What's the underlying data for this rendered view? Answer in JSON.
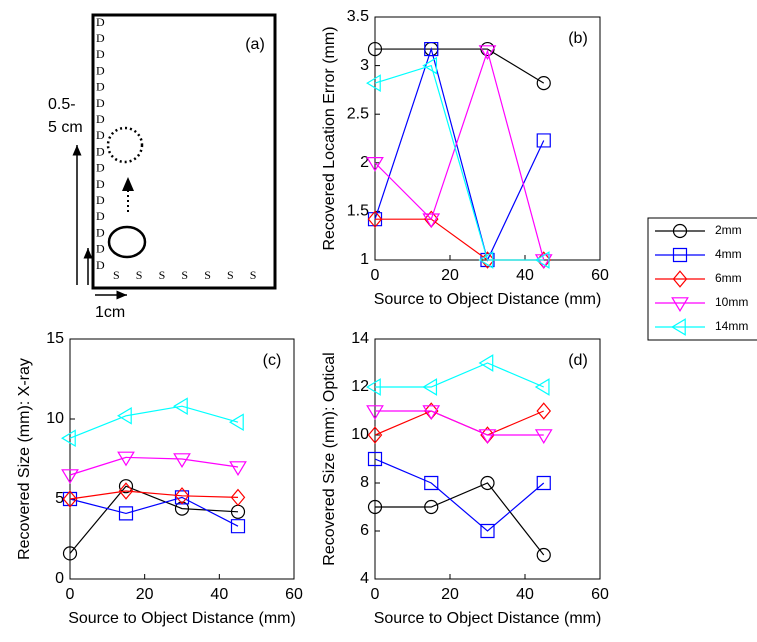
{
  "diagram": {
    "label": "(a)",
    "detectors": [
      "D",
      "D",
      "D",
      "D",
      "D",
      "D",
      "D",
      "D",
      "D",
      "D",
      "D",
      "D",
      "D",
      "D",
      "D",
      "D"
    ],
    "sources": [
      "S",
      "S",
      "S",
      "S",
      "S",
      "S",
      "S"
    ],
    "vertical_scale": [
      "0.5-",
      "5 cm"
    ],
    "horizontal_scale": "1cm"
  },
  "chart_data": [
    {
      "type": "line",
      "label": "(b)",
      "xlabel": "Source to Object Distance (mm)",
      "ylabel": "Recovered Location Error (mm)",
      "x": [
        0,
        15,
        30,
        45
      ],
      "xlim": [
        0,
        60
      ],
      "xticks": [
        0,
        20,
        40,
        60
      ],
      "ylim": [
        1,
        3.5
      ],
      "yticks": [
        1,
        1.5,
        2,
        2.5,
        3,
        3.5
      ],
      "series": [
        {
          "name": "2mm",
          "color": "#000000",
          "marker": "o",
          "values": [
            3.17,
            3.17,
            3.17,
            2.82
          ]
        },
        {
          "name": "4mm",
          "color": "#0000ff",
          "marker": "s",
          "values": [
            1.42,
            3.17,
            1.0,
            2.23
          ]
        },
        {
          "name": "6mm",
          "color": "#ff0000",
          "marker": "d",
          "values": [
            1.42,
            1.42,
            1.0,
            1.0
          ]
        },
        {
          "name": "10mm",
          "color": "#ff00ff",
          "marker": "v",
          "values": [
            2.0,
            1.42,
            3.15,
            1.0
          ]
        },
        {
          "name": "14mm",
          "color": "#00ffff",
          "marker": "<",
          "values": [
            2.82,
            3.0,
            1.0,
            1.0
          ]
        }
      ]
    },
    {
      "type": "line",
      "label": "(c)",
      "xlabel": "Source to Object Distance (mm)",
      "ylabel": "Recovered Size (mm): X-ray",
      "x": [
        0,
        15,
        30,
        45
      ],
      "xlim": [
        0,
        60
      ],
      "xticks": [
        0,
        20,
        40,
        60
      ],
      "ylim": [
        0,
        15
      ],
      "yticks": [
        0,
        5,
        10,
        15
      ],
      "series": [
        {
          "color": "#000000",
          "marker": "o",
          "values": [
            1.6,
            5.8,
            4.4,
            4.2
          ]
        },
        {
          "color": "#0000ff",
          "marker": "s",
          "values": [
            5.0,
            4.1,
            5.1,
            3.3
          ]
        },
        {
          "color": "#ff0000",
          "marker": "d",
          "values": [
            5.0,
            5.5,
            5.2,
            5.1
          ]
        },
        {
          "color": "#ff00ff",
          "marker": "v",
          "values": [
            6.5,
            7.6,
            7.5,
            7.0
          ]
        },
        {
          "color": "#00ffff",
          "marker": "<",
          "values": [
            8.8,
            10.2,
            10.8,
            9.8
          ]
        }
      ]
    },
    {
      "type": "line",
      "label": "(d)",
      "xlabel": "Source to Object Distance (mm)",
      "ylabel": "Recovered Size (mm): Optical",
      "x": [
        0,
        15,
        30,
        45
      ],
      "xlim": [
        0,
        60
      ],
      "xticks": [
        0,
        20,
        40,
        60
      ],
      "ylim": [
        4,
        14
      ],
      "yticks": [
        4,
        6,
        8,
        10,
        12,
        14
      ],
      "series": [
        {
          "color": "#000000",
          "marker": "o",
          "values": [
            7,
            7,
            8,
            5
          ]
        },
        {
          "color": "#0000ff",
          "marker": "s",
          "values": [
            9,
            8,
            6,
            8
          ]
        },
        {
          "color": "#ff0000",
          "marker": "d",
          "values": [
            10,
            11,
            10,
            11
          ]
        },
        {
          "color": "#ff00ff",
          "marker": "v",
          "values": [
            11,
            11,
            10,
            10
          ]
        },
        {
          "color": "#00ffff",
          "marker": "<",
          "values": [
            12,
            12,
            13,
            12
          ]
        }
      ]
    }
  ]
}
